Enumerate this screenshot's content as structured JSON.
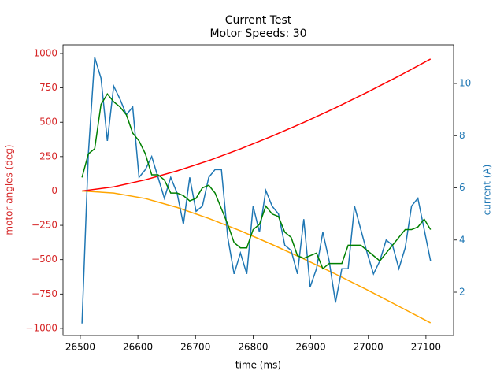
{
  "chart_data": {
    "type": "line",
    "title": "Current Test",
    "subtitle": "Motor Speeds: 30",
    "xlabel": "time (ms)",
    "ylabel": "motor angles (deg)",
    "y2label": "current (A)",
    "ylabel_color": "#d62728",
    "y2label_color": "#1f77b4",
    "x": [
      26503,
      26514,
      26525,
      26536,
      26547,
      26558,
      26569,
      26580,
      26591,
      26602,
      26613,
      26624,
      26635,
      26646,
      26657,
      26668,
      26679,
      26690,
      26701,
      26712,
      26723,
      26734,
      26745,
      26756,
      26767,
      26778,
      26789,
      26800,
      26811,
      26822,
      26833,
      26844,
      26855,
      26866,
      26877,
      26888,
      26899,
      26910,
      26921,
      26932,
      26943,
      26954,
      26965,
      26976,
      26987,
      26998,
      27009,
      27020,
      27031,
      27042,
      27053,
      27064,
      27075,
      27086,
      27097,
      27108
    ],
    "series": [
      {
        "color": "red",
        "x": [
          26503,
          26558,
          26613,
          26668,
          26723,
          26778,
          26833,
          26888,
          26943,
          26998,
          27053,
          27108
        ],
        "values": [
          0,
          30,
          81,
          146,
          221,
          306,
          399,
          499,
          605,
          718,
          836,
          960
        ]
      },
      {
        "color": "orange",
        "x": [
          26503,
          26558,
          26613,
          26668,
          26723,
          26778,
          26833,
          26888,
          26943,
          26998,
          27053,
          27108
        ],
        "values": [
          0,
          -15,
          -55,
          -120,
          -200,
          -290,
          -390,
          -495,
          -605,
          -720,
          -840,
          -960
        ]
      },
      {
        "color": "#1f77b4",
        "axis": "y2",
        "values": [
          0.8,
          7.3,
          11.0,
          10.2,
          7.8,
          9.9,
          9.4,
          8.8,
          9.1,
          6.4,
          6.7,
          7.2,
          6.4,
          5.6,
          6.4,
          5.8,
          4.6,
          6.4,
          5.1,
          5.3,
          6.4,
          6.7,
          6.7,
          4.1,
          2.7,
          3.5,
          2.7,
          5.3,
          4.3,
          5.9,
          5.3,
          5.0,
          3.8,
          3.6,
          2.7,
          4.8,
          2.2,
          2.9,
          4.3,
          3.2,
          1.6,
          2.9,
          2.9,
          5.3,
          4.4,
          3.5,
          2.7,
          3.2,
          4.0,
          3.8,
          2.9,
          3.7,
          5.3,
          5.6,
          4.4,
          3.2
        ]
      },
      {
        "color": "green",
        "axis": "y2",
        "values": [
          6.4,
          7.3,
          7.5,
          9.2,
          9.6,
          9.3,
          9.1,
          8.8,
          8.1,
          7.8,
          7.3,
          6.5,
          6.5,
          6.3,
          5.8,
          5.8,
          5.7,
          5.5,
          5.6,
          6.0,
          6.1,
          5.8,
          5.2,
          4.6,
          3.9,
          3.7,
          3.7,
          4.4,
          4.6,
          5.3,
          5.0,
          4.9,
          4.3,
          4.1,
          3.4,
          3.3,
          3.4,
          3.5,
          2.9,
          3.1,
          3.1,
          3.1,
          3.8,
          3.8,
          3.8,
          3.6,
          3.4,
          3.2,
          3.5,
          3.8,
          4.1,
          4.4,
          4.4,
          4.5,
          4.8,
          4.4
        ]
      }
    ],
    "xlim": [
      26470,
      27148
    ],
    "xticks": [
      26500,
      26600,
      26700,
      26800,
      26900,
      27000,
      27100
    ],
    "ylim": [
      -1052,
      1063
    ],
    "yticks": [
      {
        "value": -1000,
        "label": "−1000"
      },
      {
        "value": -750,
        "label": "−750"
      },
      {
        "value": -500,
        "label": "−500"
      },
      {
        "value": -250,
        "label": "−250"
      },
      0,
      250,
      500,
      750,
      1000
    ],
    "y2lim": [
      0.34,
      11.48
    ],
    "y2ticks": [
      2,
      4,
      6,
      8,
      10
    ]
  }
}
